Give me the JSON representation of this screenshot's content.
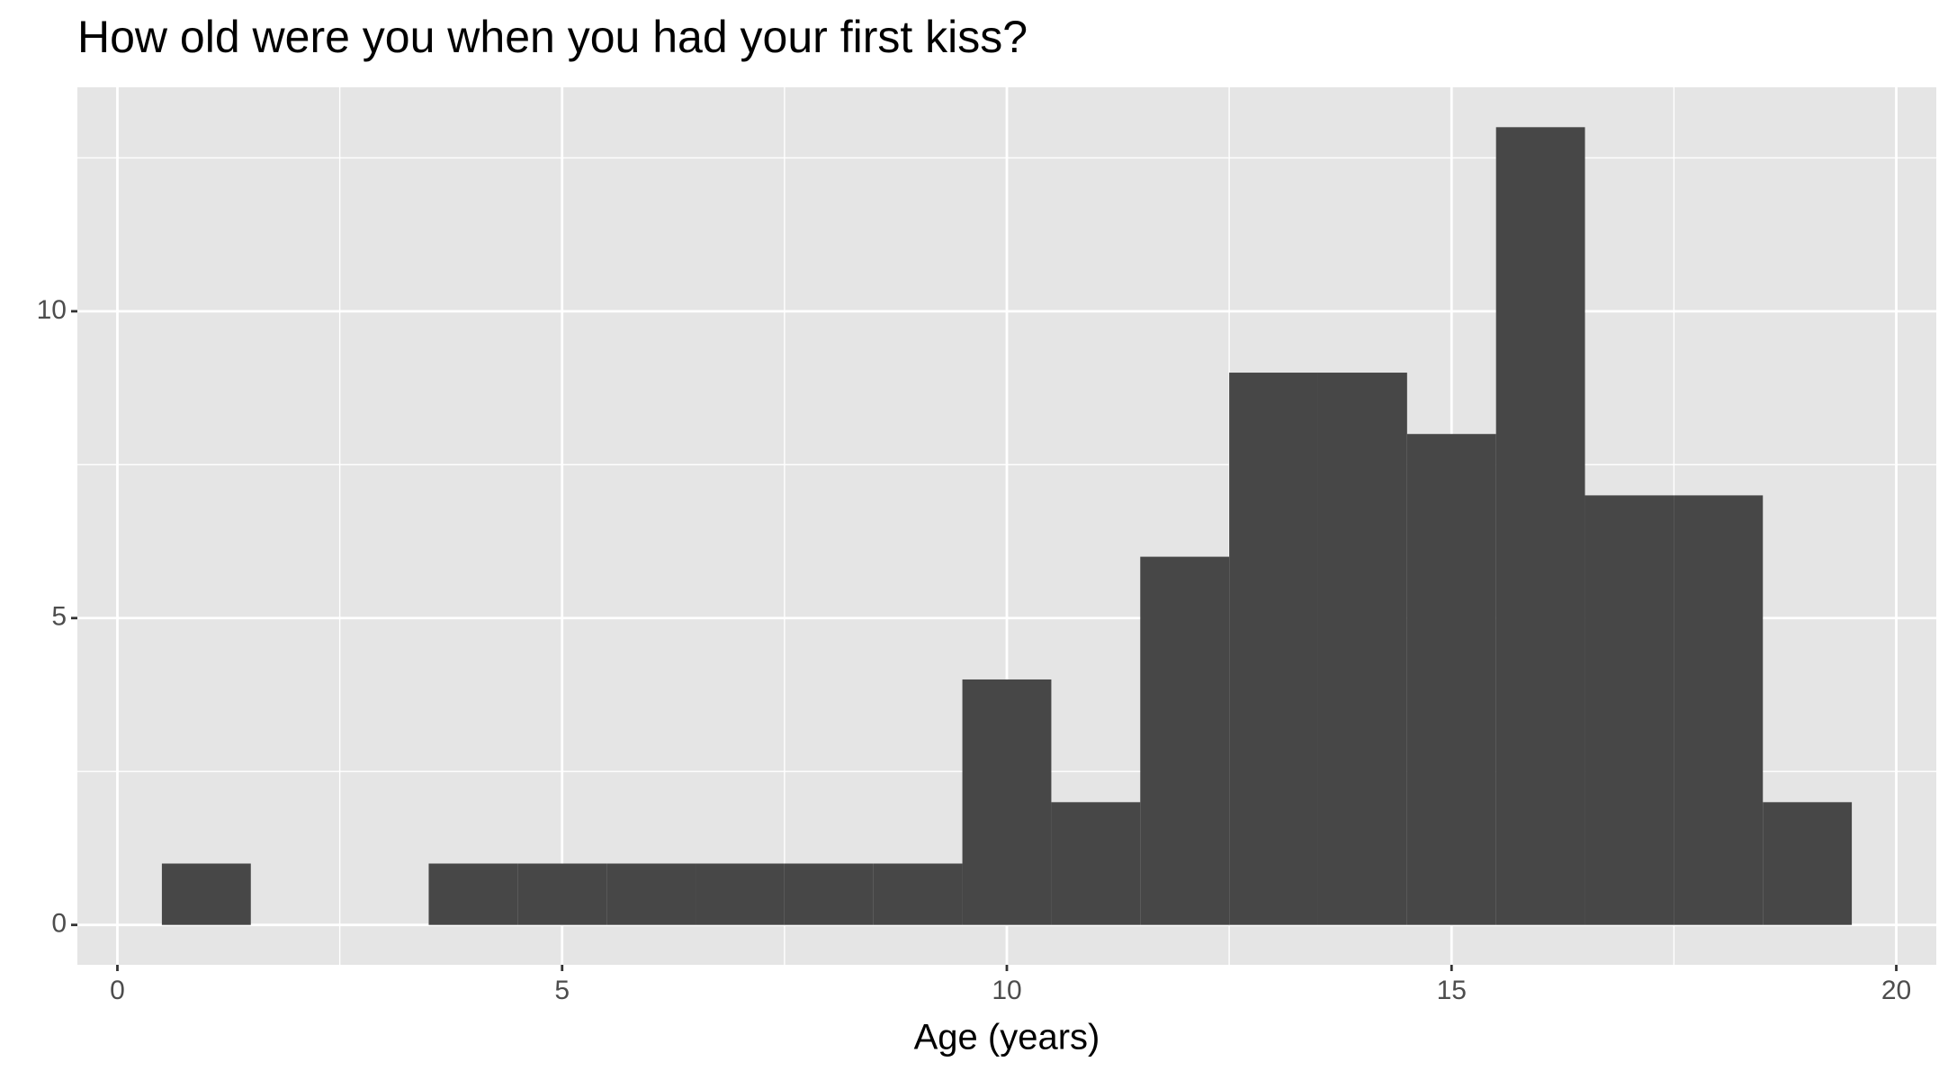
{
  "chart_data": {
    "type": "histogram",
    "title": "How old were you when you had your first kiss?",
    "x_label": "Age (years)",
    "bins": [
      0.5,
      1.5,
      2.5,
      3.5,
      4.5,
      5.5,
      6.5,
      7.5,
      8.5,
      9.5,
      10.5,
      11.5,
      12.5,
      13.5,
      14.5,
      15.5,
      16.5,
      17.5,
      18.5,
      19.5
    ],
    "values": [
      1,
      0,
      0,
      1,
      1,
      1,
      1,
      1,
      1,
      4,
      2,
      6,
      9,
      9,
      8,
      13,
      7,
      7,
      2
    ],
    "color": "#474747",
    "xlim": [
      -0.45,
      20.45
    ],
    "xticks": [
      0,
      5,
      10,
      15,
      20
    ],
    "x_minor_ticks": [
      2.5,
      7.5,
      12.5,
      17.5
    ],
    "ylim": [
      -0.65,
      13.65
    ],
    "yticks": [
      0,
      5,
      10
    ],
    "y_minor_ticks": [
      2.5,
      7.5,
      12.5
    ],
    "grid": true
  }
}
